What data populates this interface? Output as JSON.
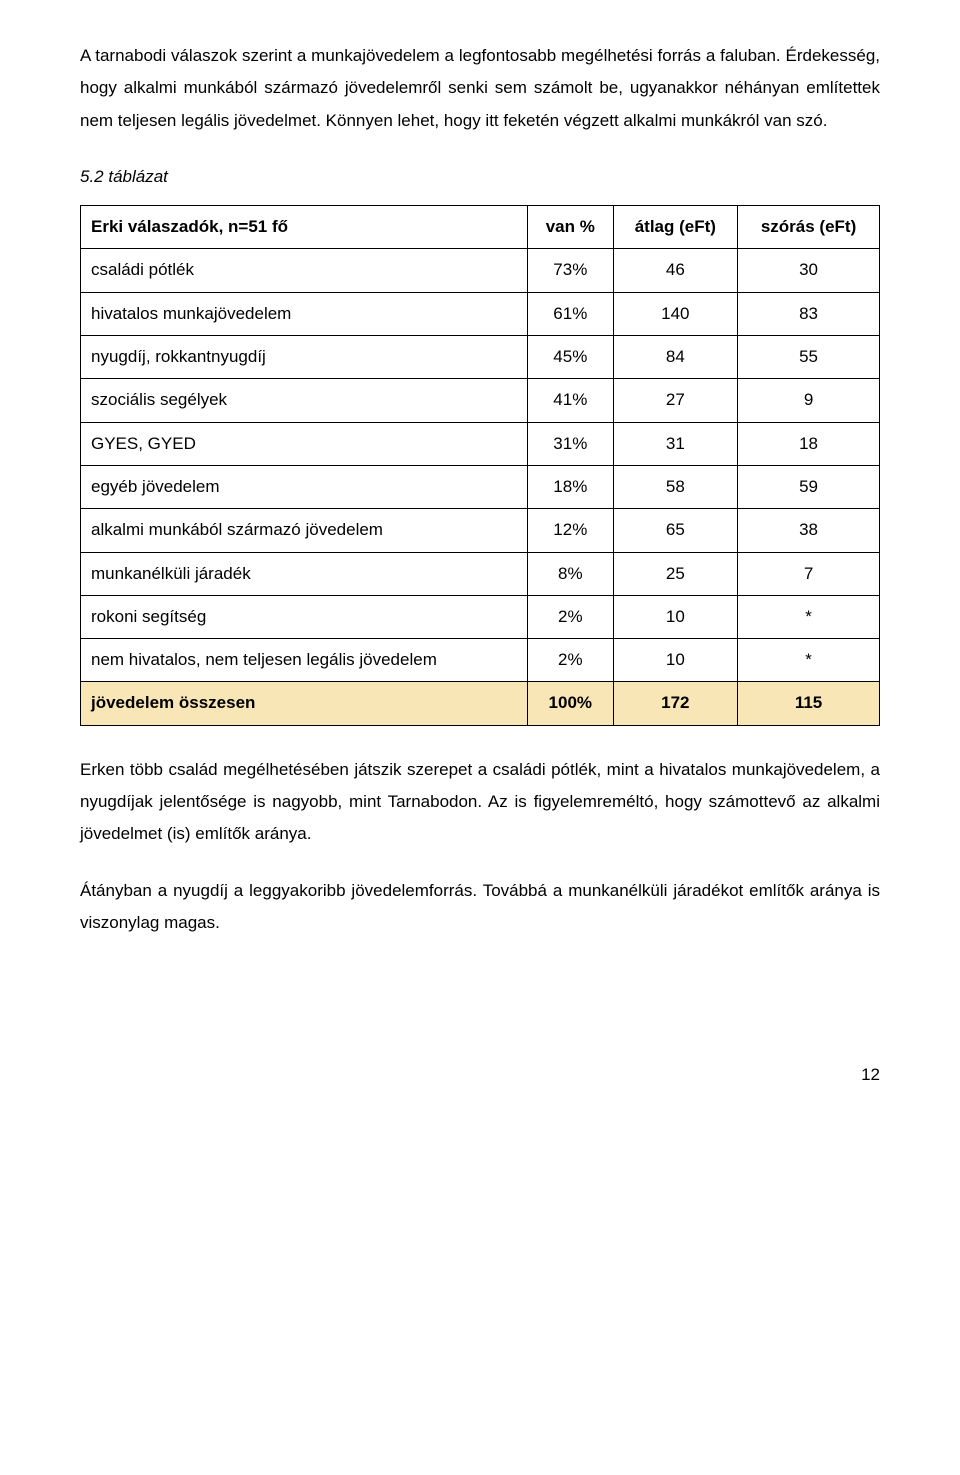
{
  "paragraphs": {
    "p1": "A tarnabodi válaszok szerint a munkajövedelem a legfontosabb megélhetési forrás a faluban. Érdekesség, hogy alkalmi munkából származó jövedelemről senki sem számolt be, ugyanakkor néhányan említettek nem teljesen legális jövedelmet. Könnyen lehet, hogy itt feketén végzett alkalmi munkákról van szó.",
    "p2": "Erken több család megélhetésében játszik szerepet a családi pótlék, mint a hivatalos munkajövedelem, a nyugdíjak jelentősége is nagyobb, mint Tarnabodon. Az is figyelemreméltó, hogy számottevő az alkalmi jövedelmet (is) említők aránya.",
    "p3": "Átányban a nyugdíj a leggyakoribb jövedelemforrás. Továbbá a munkanélküli járadékot említők aránya is viszonylag magas."
  },
  "table": {
    "caption": "5.2 táblázat",
    "header": {
      "title": "Erki válaszadók, n=51 fő",
      "cols": [
        "van %",
        "átlag (eFt)",
        "szórás (eFt)"
      ]
    },
    "rows": [
      {
        "label": "családi pótlék",
        "vals": [
          "73%",
          "46",
          "30"
        ]
      },
      {
        "label": "hivatalos munkajövedelem",
        "vals": [
          "61%",
          "140",
          "83"
        ]
      },
      {
        "label": "nyugdíj, rokkantnyugdíj",
        "vals": [
          "45%",
          "84",
          "55"
        ]
      },
      {
        "label": "szociális segélyek",
        "vals": [
          "41%",
          "27",
          "9"
        ]
      },
      {
        "label": "GYES, GYED",
        "vals": [
          "31%",
          "31",
          "18"
        ]
      },
      {
        "label": "egyéb jövedelem",
        "vals": [
          "18%",
          "58",
          "59"
        ]
      },
      {
        "label": "alkalmi munkából származó jövedelem",
        "vals": [
          "12%",
          "65",
          "38"
        ]
      },
      {
        "label": "munkanélküli járadék",
        "vals": [
          "8%",
          "25",
          "7"
        ]
      },
      {
        "label": "rokoni segítség",
        "vals": [
          "2%",
          "10",
          "*"
        ]
      },
      {
        "label": "nem hivatalos, nem teljesen legális jövedelem",
        "vals": [
          "2%",
          "10",
          "*"
        ]
      }
    ],
    "total": {
      "label": "jövedelem összesen",
      "vals": [
        "100%",
        "172",
        "115"
      ]
    },
    "highlight_color": "#f9e6b6",
    "border_color": "#000000"
  },
  "page_number": "12"
}
